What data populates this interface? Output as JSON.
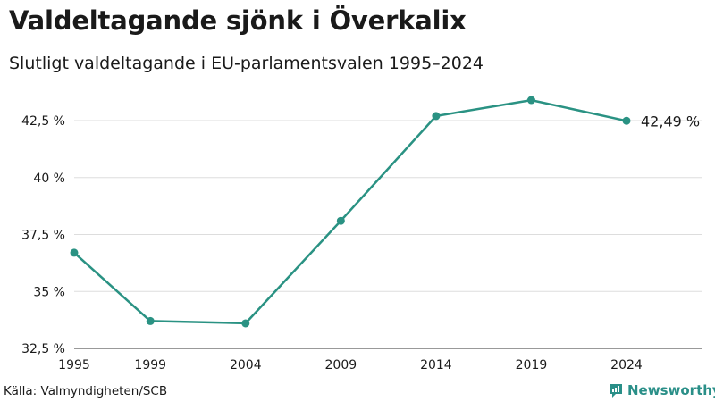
{
  "header": {
    "title": "Valdeltagande sjönk i Överkalix",
    "subtitle": "Slutligt valdeltagande i EU-parlamentsvalen 1995–2024"
  },
  "footer": {
    "source": "Källa: Valmyndigheten/SCB",
    "brand": "Newsworthy",
    "brand_icon": "bar-chart-logo-icon"
  },
  "colors": {
    "line": "#2a9283",
    "grid": "#dddddd",
    "text": "#1a1a1a",
    "brand": "#2a8f88"
  },
  "chart_data": {
    "type": "line",
    "title": "Valdeltagande sjönk i Överkalix",
    "subtitle": "Slutligt valdeltagande i EU-parlamentsvalen 1995–2024",
    "xlabel": "",
    "ylabel": "",
    "x": [
      1995,
      1999,
      2004,
      2009,
      2014,
      2019,
      2024
    ],
    "x_tick_labels": [
      "1995",
      "1999",
      "2004",
      "2009",
      "2014",
      "2019",
      "2024"
    ],
    "series": [
      {
        "values": [
          36.7,
          33.7,
          33.6,
          38.1,
          42.7,
          43.4,
          42.49
        ]
      }
    ],
    "ylim": [
      32.5,
      42.5
    ],
    "y_ticks": [
      32.5,
      35,
      37.5,
      40,
      42.5
    ],
    "y_tick_labels": [
      "32,5 %",
      "35 %",
      "37,5 %",
      "40 %",
      "42,5 %"
    ],
    "end_label": "42,49 %",
    "grid": true,
    "legend": "none"
  }
}
